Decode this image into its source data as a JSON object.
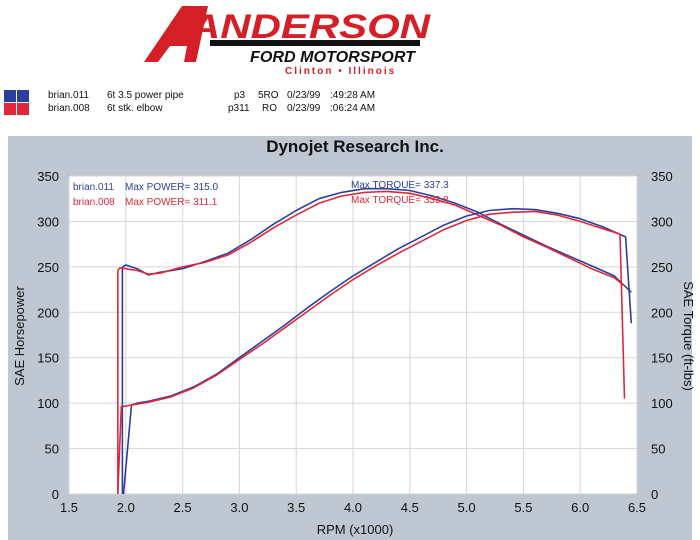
{
  "logo": {
    "brand": "ANDERSON",
    "subbrand": "FORD MOTORSPORT",
    "location": "Clinton • Illinois",
    "colors": {
      "red": "#d51f26",
      "black": "#111111"
    }
  },
  "runs": [
    {
      "file": "brian.011",
      "desc": "6t 3.5 power pipe",
      "code1": "p3",
      "code2": "5RO",
      "date": "0/23/99",
      "time": ":49:28 AM",
      "color": "#2b3f9e"
    },
    {
      "file": "brian.008",
      "desc": "6t stk. elbow",
      "code1": "p311",
      "code2": "RO",
      "date": "0/23/99",
      "time": ":06:24 AM",
      "color": "#e0283a"
    }
  ],
  "chart_data": {
    "type": "line",
    "title": "Dynojet  Research  Inc.",
    "xlabel": "RPM (x1000)",
    "ylabel": "SAE Horsepower",
    "y2label": "SAE Torque (ft-lbs)",
    "xlim": [
      1.5,
      6.5
    ],
    "ylim": [
      0,
      350
    ],
    "xticks": [
      "1.5",
      "2.0",
      "2.5",
      "3.0",
      "3.5",
      "4.0",
      "4.5",
      "5.0",
      "5.5",
      "6.0",
      "6.5"
    ],
    "yticks": [
      "0",
      "50",
      "100",
      "150",
      "200",
      "250",
      "300",
      "350"
    ],
    "grid": true,
    "colors": {
      "panel": "#bfc8d2",
      "plot_bg": "#ffffff"
    },
    "annotations": [
      {
        "label": "brian.011",
        "text": "Max POWER= 315.0",
        "color": "#2b3f9e"
      },
      {
        "label": "brian.008",
        "text": "Max POWER= 311.1",
        "color": "#e0283a"
      },
      {
        "text": "Max TORQUE= 337.3",
        "color": "#2b3f9e"
      },
      {
        "text": "Max TORQUE= 333.8",
        "color": "#e0283a"
      }
    ],
    "series": [
      {
        "run": "brian.011",
        "measure": "torque",
        "color": "#2b3f9e",
        "x": [
          1.97,
          2.0,
          2.1,
          2.2,
          2.3,
          2.5,
          2.7,
          2.9,
          3.1,
          3.3,
          3.5,
          3.7,
          3.9,
          4.1,
          4.3,
          4.5,
          4.7,
          4.9,
          5.1,
          5.3,
          5.5,
          5.7,
          5.9,
          6.1,
          6.3,
          6.45
        ],
        "y": [
          250,
          252,
          248,
          241,
          244,
          248,
          256,
          265,
          280,
          297,
          312,
          325,
          332,
          336,
          336,
          334,
          328,
          320,
          310,
          297,
          285,
          273,
          262,
          251,
          240,
          222
        ]
      },
      {
        "run": "brian.008",
        "measure": "torque",
        "color": "#e0283a",
        "x": [
          1.93,
          1.95,
          2.1,
          2.2,
          2.3,
          2.5,
          2.7,
          2.9,
          3.1,
          3.3,
          3.5,
          3.7,
          3.9,
          4.1,
          4.3,
          4.5,
          4.7,
          4.9,
          5.1,
          5.3,
          5.5,
          5.7,
          5.9,
          6.1,
          6.3,
          6.39
        ],
        "y": [
          246,
          249,
          246,
          242,
          243,
          250,
          255,
          263,
          277,
          293,
          307,
          320,
          328,
          332,
          333,
          331,
          325,
          318,
          307,
          296,
          283,
          272,
          260,
          248,
          238,
          229
        ]
      },
      {
        "run": "brian.011",
        "measure": "horsepower",
        "color": "#2b3f9e",
        "x": [
          1.98,
          2.05,
          2.1,
          2.2,
          2.4,
          2.6,
          2.8,
          3.0,
          3.2,
          3.4,
          3.6,
          3.8,
          4.0,
          4.2,
          4.4,
          4.6,
          4.8,
          5.0,
          5.2,
          5.4,
          5.6,
          5.8,
          6.0,
          6.2,
          6.4,
          6.45
        ],
        "y": [
          0,
          98,
          100,
          102,
          108,
          118,
          132,
          150,
          168,
          186,
          205,
          223,
          240,
          255,
          270,
          283,
          296,
          306,
          312,
          314,
          313,
          309,
          303,
          294,
          283,
          188
        ]
      },
      {
        "run": "brian.008",
        "measure": "horsepower",
        "color": "#e0283a",
        "x": [
          1.93,
          1.96,
          2.1,
          2.2,
          2.4,
          2.6,
          2.8,
          3.0,
          3.2,
          3.4,
          3.6,
          3.8,
          4.0,
          4.2,
          4.4,
          4.6,
          4.8,
          5.0,
          5.2,
          5.4,
          5.6,
          5.8,
          6.0,
          6.2,
          6.35,
          6.39
        ],
        "y": [
          0,
          96,
          99,
          101,
          107,
          117,
          131,
          148,
          165,
          183,
          201,
          219,
          236,
          251,
          265,
          278,
          291,
          301,
          308,
          310,
          311,
          307,
          300,
          292,
          286,
          105
        ]
      }
    ]
  }
}
